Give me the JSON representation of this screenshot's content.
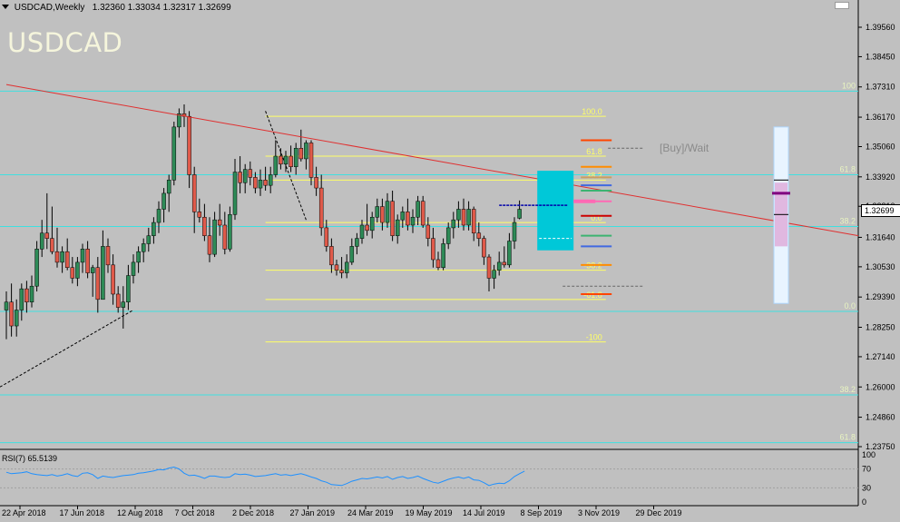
{
  "header": {
    "title": "USDCAD,Weekly",
    "ohlc": "1.32360 1.33034 1.32317 1.32699"
  },
  "symbol_label": "USDCAD",
  "signal_label": "[Buy]/Wait",
  "current_price": "1.32699",
  "rsi": {
    "label": "RSI(7) 65.5139",
    "levels": [
      "100",
      "70",
      "30",
      "0"
    ]
  },
  "price_axis": {
    "ticks": [
      "1.39560",
      "1.38450",
      "1.37310",
      "1.36170",
      "1.35060",
      "1.33920",
      "1.32810",
      "1.31640",
      "1.30530",
      "1.29390",
      "1.28250",
      "1.27140",
      "1.26000",
      "1.24860",
      "1.23750"
    ]
  },
  "time_axis": {
    "ticks": [
      "22 Apr 2018",
      "17 Jun 2018",
      "12 Aug 2018",
      "7 Oct 2018",
      "2 Dec 2018",
      "27 Jan 2019",
      "24 Mar 2019",
      "19 May 2019",
      "14 Jul 2019",
      "8 Sep 2019",
      "3 Nov 2019",
      "29 Dec 2019"
    ]
  },
  "fib_levels": [
    "100.0",
    "61.8",
    "38.2",
    "0.0",
    "-38.2",
    "-61.8",
    "-100"
  ],
  "h_levels": [
    "100",
    "61.8",
    "38.2",
    "0.0",
    "38.2",
    "61.8"
  ],
  "colors": {
    "background": "#c0c0c0",
    "bull": "#2e8b57",
    "bear": "#e05a4a",
    "fib": "#ffff66",
    "hline": "#40e0e0",
    "trend": "#e03030",
    "rsi": "#1e90ff"
  },
  "chart_data": {
    "type": "candlestick",
    "symbol": "USDCAD",
    "timeframe": "Weekly",
    "last_close": 1.32699,
    "candles": [
      {
        "o": 1.289,
        "h": 1.296,
        "l": 1.278,
        "c": 1.292
      },
      {
        "o": 1.292,
        "h": 1.299,
        "l": 1.279,
        "c": 1.283
      },
      {
        "o": 1.283,
        "h": 1.293,
        "l": 1.279,
        "c": 1.289
      },
      {
        "o": 1.289,
        "h": 1.299,
        "l": 1.285,
        "c": 1.297
      },
      {
        "o": 1.297,
        "h": 1.3,
        "l": 1.288,
        "c": 1.292
      },
      {
        "o": 1.292,
        "h": 1.302,
        "l": 1.29,
        "c": 1.298
      },
      {
        "o": 1.298,
        "h": 1.315,
        "l": 1.296,
        "c": 1.312
      },
      {
        "o": 1.312,
        "h": 1.323,
        "l": 1.309,
        "c": 1.318
      },
      {
        "o": 1.318,
        "h": 1.333,
        "l": 1.312,
        "c": 1.316
      },
      {
        "o": 1.316,
        "h": 1.328,
        "l": 1.31,
        "c": 1.311
      },
      {
        "o": 1.311,
        "h": 1.32,
        "l": 1.305,
        "c": 1.307
      },
      {
        "o": 1.307,
        "h": 1.313,
        "l": 1.303,
        "c": 1.311
      },
      {
        "o": 1.311,
        "h": 1.316,
        "l": 1.304,
        "c": 1.305
      },
      {
        "o": 1.305,
        "h": 1.309,
        "l": 1.299,
        "c": 1.301
      },
      {
        "o": 1.301,
        "h": 1.309,
        "l": 1.298,
        "c": 1.307
      },
      {
        "o": 1.307,
        "h": 1.314,
        "l": 1.303,
        "c": 1.312
      },
      {
        "o": 1.312,
        "h": 1.315,
        "l": 1.301,
        "c": 1.303
      },
      {
        "o": 1.303,
        "h": 1.306,
        "l": 1.294,
        "c": 1.305
      },
      {
        "o": 1.305,
        "h": 1.309,
        "l": 1.288,
        "c": 1.293
      },
      {
        "o": 1.293,
        "h": 1.319,
        "l": 1.293,
        "c": 1.313
      },
      {
        "o": 1.313,
        "h": 1.316,
        "l": 1.303,
        "c": 1.306
      },
      {
        "o": 1.306,
        "h": 1.31,
        "l": 1.291,
        "c": 1.295
      },
      {
        "o": 1.295,
        "h": 1.298,
        "l": 1.288,
        "c": 1.29
      },
      {
        "o": 1.29,
        "h": 1.298,
        "l": 1.282,
        "c": 1.292
      },
      {
        "o": 1.292,
        "h": 1.306,
        "l": 1.289,
        "c": 1.302
      },
      {
        "o": 1.302,
        "h": 1.31,
        "l": 1.299,
        "c": 1.307
      },
      {
        "o": 1.307,
        "h": 1.313,
        "l": 1.303,
        "c": 1.311
      },
      {
        "o": 1.311,
        "h": 1.316,
        "l": 1.307,
        "c": 1.314
      },
      {
        "o": 1.314,
        "h": 1.32,
        "l": 1.311,
        "c": 1.317
      },
      {
        "o": 1.317,
        "h": 1.324,
        "l": 1.314,
        "c": 1.322
      },
      {
        "o": 1.322,
        "h": 1.33,
        "l": 1.318,
        "c": 1.327
      },
      {
        "o": 1.327,
        "h": 1.335,
        "l": 1.322,
        "c": 1.333
      },
      {
        "o": 1.333,
        "h": 1.34,
        "l": 1.326,
        "c": 1.338
      },
      {
        "o": 1.338,
        "h": 1.36,
        "l": 1.336,
        "c": 1.358
      },
      {
        "o": 1.358,
        "h": 1.365,
        "l": 1.354,
        "c": 1.363
      },
      {
        "o": 1.363,
        "h": 1.3665,
        "l": 1.358,
        "c": 1.362
      },
      {
        "o": 1.362,
        "h": 1.364,
        "l": 1.335,
        "c": 1.34
      },
      {
        "o": 1.34,
        "h": 1.343,
        "l": 1.318,
        "c": 1.326
      },
      {
        "o": 1.326,
        "h": 1.331,
        "l": 1.322,
        "c": 1.324
      },
      {
        "o": 1.324,
        "h": 1.329,
        "l": 1.315,
        "c": 1.317
      },
      {
        "o": 1.317,
        "h": 1.324,
        "l": 1.307,
        "c": 1.31
      },
      {
        "o": 1.31,
        "h": 1.326,
        "l": 1.309,
        "c": 1.323
      },
      {
        "o": 1.323,
        "h": 1.329,
        "l": 1.317,
        "c": 1.321
      },
      {
        "o": 1.321,
        "h": 1.326,
        "l": 1.31,
        "c": 1.312
      },
      {
        "o": 1.312,
        "h": 1.328,
        "l": 1.311,
        "c": 1.325
      },
      {
        "o": 1.325,
        "h": 1.346,
        "l": 1.323,
        "c": 1.341
      },
      {
        "o": 1.341,
        "h": 1.347,
        "l": 1.333,
        "c": 1.337
      },
      {
        "o": 1.337,
        "h": 1.344,
        "l": 1.333,
        "c": 1.342
      },
      {
        "o": 1.342,
        "h": 1.345,
        "l": 1.336,
        "c": 1.339
      },
      {
        "o": 1.339,
        "h": 1.341,
        "l": 1.333,
        "c": 1.335
      },
      {
        "o": 1.335,
        "h": 1.342,
        "l": 1.332,
        "c": 1.338
      },
      {
        "o": 1.338,
        "h": 1.343,
        "l": 1.334,
        "c": 1.336
      },
      {
        "o": 1.336,
        "h": 1.343,
        "l": 1.333,
        "c": 1.34
      },
      {
        "o": 1.34,
        "h": 1.353,
        "l": 1.339,
        "c": 1.347
      },
      {
        "o": 1.347,
        "h": 1.35,
        "l": 1.342,
        "c": 1.344
      },
      {
        "o": 1.344,
        "h": 1.349,
        "l": 1.341,
        "c": 1.347
      },
      {
        "o": 1.347,
        "h": 1.351,
        "l": 1.341,
        "c": 1.343
      },
      {
        "o": 1.343,
        "h": 1.352,
        "l": 1.34,
        "c": 1.35
      },
      {
        "o": 1.35,
        "h": 1.357,
        "l": 1.345,
        "c": 1.346
      },
      {
        "o": 1.346,
        "h": 1.353,
        "l": 1.342,
        "c": 1.352
      },
      {
        "o": 1.352,
        "h": 1.353,
        "l": 1.336,
        "c": 1.339
      },
      {
        "o": 1.339,
        "h": 1.343,
        "l": 1.332,
        "c": 1.335
      },
      {
        "o": 1.335,
        "h": 1.34,
        "l": 1.317,
        "c": 1.32
      },
      {
        "o": 1.32,
        "h": 1.323,
        "l": 1.311,
        "c": 1.313
      },
      {
        "o": 1.313,
        "h": 1.316,
        "l": 1.303,
        "c": 1.306
      },
      {
        "o": 1.306,
        "h": 1.308,
        "l": 1.302,
        "c": 1.304
      },
      {
        "o": 1.304,
        "h": 1.309,
        "l": 1.301,
        "c": 1.303
      },
      {
        "o": 1.303,
        "h": 1.31,
        "l": 1.301,
        "c": 1.307
      },
      {
        "o": 1.307,
        "h": 1.316,
        "l": 1.306,
        "c": 1.313
      },
      {
        "o": 1.313,
        "h": 1.318,
        "l": 1.31,
        "c": 1.316
      },
      {
        "o": 1.316,
        "h": 1.323,
        "l": 1.314,
        "c": 1.321
      },
      {
        "o": 1.321,
        "h": 1.329,
        "l": 1.317,
        "c": 1.319
      },
      {
        "o": 1.319,
        "h": 1.326,
        "l": 1.316,
        "c": 1.324
      },
      {
        "o": 1.324,
        "h": 1.331,
        "l": 1.322,
        "c": 1.328
      },
      {
        "o": 1.328,
        "h": 1.331,
        "l": 1.319,
        "c": 1.322
      },
      {
        "o": 1.322,
        "h": 1.333,
        "l": 1.32,
        "c": 1.33
      },
      {
        "o": 1.33,
        "h": 1.334,
        "l": 1.315,
        "c": 1.317
      },
      {
        "o": 1.317,
        "h": 1.325,
        "l": 1.314,
        "c": 1.323
      },
      {
        "o": 1.323,
        "h": 1.328,
        "l": 1.32,
        "c": 1.326
      },
      {
        "o": 1.326,
        "h": 1.331,
        "l": 1.319,
        "c": 1.321
      },
      {
        "o": 1.321,
        "h": 1.327,
        "l": 1.318,
        "c": 1.324
      },
      {
        "o": 1.324,
        "h": 1.332,
        "l": 1.321,
        "c": 1.33
      },
      {
        "o": 1.33,
        "h": 1.332,
        "l": 1.32,
        "c": 1.321
      },
      {
        "o": 1.321,
        "h": 1.324,
        "l": 1.313,
        "c": 1.316
      },
      {
        "o": 1.316,
        "h": 1.32,
        "l": 1.305,
        "c": 1.308
      },
      {
        "o": 1.308,
        "h": 1.311,
        "l": 1.304,
        "c": 1.305
      },
      {
        "o": 1.305,
        "h": 1.316,
        "l": 1.304,
        "c": 1.314
      },
      {
        "o": 1.314,
        "h": 1.322,
        "l": 1.312,
        "c": 1.32
      },
      {
        "o": 1.32,
        "h": 1.326,
        "l": 1.316,
        "c": 1.323
      },
      {
        "o": 1.323,
        "h": 1.33,
        "l": 1.32,
        "c": 1.327
      },
      {
        "o": 1.327,
        "h": 1.331,
        "l": 1.319,
        "c": 1.321
      },
      {
        "o": 1.321,
        "h": 1.33,
        "l": 1.319,
        "c": 1.327
      },
      {
        "o": 1.327,
        "h": 1.328,
        "l": 1.315,
        "c": 1.318
      },
      {
        "o": 1.318,
        "h": 1.322,
        "l": 1.313,
        "c": 1.316
      },
      {
        "o": 1.316,
        "h": 1.317,
        "l": 1.306,
        "c": 1.309
      },
      {
        "o": 1.309,
        "h": 1.31,
        "l": 1.296,
        "c": 1.301
      },
      {
        "o": 1.301,
        "h": 1.306,
        "l": 1.297,
        "c": 1.304
      },
      {
        "o": 1.304,
        "h": 1.311,
        "l": 1.302,
        "c": 1.307
      },
      {
        "o": 1.307,
        "h": 1.313,
        "l": 1.305,
        "c": 1.306
      },
      {
        "o": 1.306,
        "h": 1.318,
        "l": 1.305,
        "c": 1.315
      },
      {
        "o": 1.315,
        "h": 1.324,
        "l": 1.312,
        "c": 1.322
      },
      {
        "o": 1.3236,
        "h": 1.3303,
        "l": 1.3232,
        "c": 1.32699
      }
    ],
    "fibonacci": [
      {
        "label": "100.0",
        "price": 1.362
      },
      {
        "label": "61.8",
        "price": 1.347
      },
      {
        "label": "38.2",
        "price": 1.338
      },
      {
        "label": "0.0",
        "price": 1.322
      },
      {
        "label": "-38.2",
        "price": 1.304
      },
      {
        "label": "-61.8",
        "price": 1.293
      },
      {
        "label": "-100",
        "price": 1.277
      }
    ],
    "horizontal_levels": [
      {
        "label": "100",
        "price": 1.3715
      },
      {
        "label": "61.8",
        "price": 1.34
      },
      {
        "label": "38.2",
        "price": 1.3205
      },
      {
        "label": "0.0",
        "price": 1.2885
      },
      {
        "label": "38.2",
        "price": 1.257
      },
      {
        "label": "61.8",
        "price": 1.239
      }
    ],
    "trendline": {
      "from": {
        "bar": 0,
        "price": 1.374
      },
      "to": {
        "bar": 103,
        "price": 1.339
      }
    },
    "rsi_values": [
      63,
      60,
      61,
      62,
      64,
      60,
      58,
      57,
      56,
      58,
      55,
      57,
      60,
      56,
      54,
      61,
      62,
      58,
      50,
      55,
      53,
      52,
      54,
      56,
      57,
      58,
      61,
      62,
      64,
      66,
      69,
      68,
      72,
      74,
      70,
      61,
      56,
      57,
      54,
      50,
      55,
      55,
      53,
      52,
      53,
      60,
      58,
      59,
      57,
      54,
      55,
      56,
      58,
      60,
      57,
      58,
      56,
      58,
      60,
      57,
      53,
      50,
      45,
      42,
      37,
      36,
      35,
      39,
      44,
      47,
      50,
      49,
      51,
      53,
      51,
      54,
      48,
      52,
      54,
      50,
      52,
      55,
      50,
      46,
      42,
      40,
      44,
      48,
      51,
      53,
      50,
      53,
      47,
      46,
      41,
      35,
      38,
      40,
      39,
      45,
      54,
      60,
      65.5
    ]
  }
}
